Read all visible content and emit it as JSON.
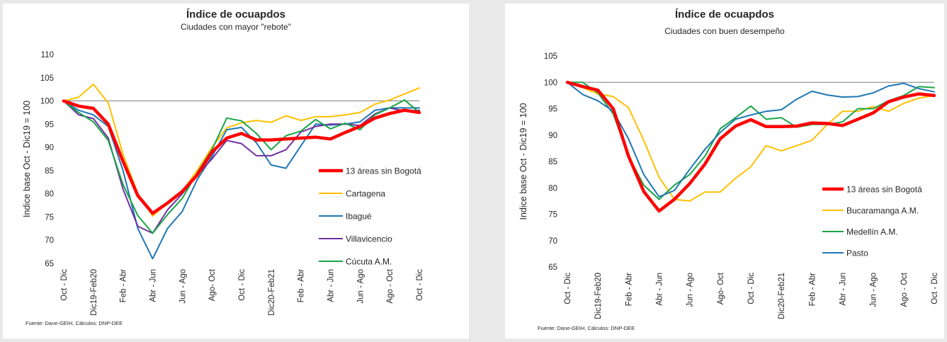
{
  "chart_data": [
    {
      "type": "line",
      "title": "Índice de ocuapdos",
      "subtitle": "Ciudades con mayor \"rebote\"",
      "ylabel": "Indice base Oct - Dic19 = 100",
      "xlabel": "",
      "ylim": [
        65,
        110
      ],
      "yticks": [
        65,
        70,
        75,
        80,
        85,
        90,
        95,
        100,
        105,
        110
      ],
      "reference_line": 100,
      "grid": false,
      "legend_position": "right",
      "x_tick_labels": [
        "Oct - Dic",
        "Dic19-Feb20",
        "Feb - Abr",
        "Abr - Jun",
        "Jun - Ago",
        "Ago- Oct",
        "Oct - Dic",
        "Dic20-Feb21",
        "Feb - Abr",
        "Abr - Jun",
        "Jun - Ago",
        "Ago - Oct",
        "Oct - Dic"
      ],
      "source": "Fuente: Dane-GEIH, Cálculos: DNP-DEE",
      "series": [
        {
          "name": "Cartagena",
          "color": "#ffc000",
          "width": 2,
          "values": [
            100,
            100.8,
            103.6,
            99.6,
            88.5,
            80,
            75.2,
            78,
            80.5,
            85,
            90,
            94.2,
            95.3,
            95.8,
            95.4,
            96.8,
            95.8,
            96.6,
            96.6,
            97,
            97.5,
            99.3,
            100.2,
            101.5,
            102.8
          ]
        },
        {
          "name": "Ibagué",
          "color": "#1f77b4",
          "width": 2,
          "values": [
            100,
            98,
            97,
            94.5,
            85,
            72.5,
            66,
            72.5,
            76.2,
            83,
            88,
            93.8,
            94.3,
            91,
            86.2,
            85.5,
            90.3,
            95,
            94.8,
            95,
            95.5,
            98,
            98.5,
            98.5,
            98.5
          ]
        },
        {
          "name": "Villavicencio",
          "color": "#7030a0",
          "width": 2,
          "values": [
            100,
            97,
            96.2,
            92,
            81,
            73,
            71.5,
            76.5,
            80,
            84,
            87.5,
            91.5,
            90.8,
            88.2,
            88.2,
            89.5,
            93.3,
            94.5,
            95,
            95,
            94.7,
            97.2,
            98.5,
            97.8,
            98
          ]
        },
        {
          "name": "Cúcuta A.M.",
          "color": "#1aa547",
          "width": 2,
          "values": [
            100,
            97.5,
            95.5,
            91.5,
            82,
            75.3,
            71.5,
            75.5,
            79,
            84.5,
            89.5,
            96.3,
            95.7,
            93,
            89.5,
            92.5,
            93.5,
            96,
            94,
            95.2,
            93.8,
            97,
            98.5,
            100.2,
            97.5
          ]
        },
        {
          "name": "13 áreas sin Bogotá",
          "color": "#ff0000",
          "width": 4.5,
          "values": [
            100,
            98.9,
            98.4,
            95,
            87,
            79.6,
            75.8,
            78,
            80.5,
            84,
            89,
            92,
            93,
            91.6,
            91.6,
            91.8,
            92,
            92.2,
            91.8,
            93.2,
            94.5,
            96.3,
            97.3,
            98,
            97.5
          ]
        }
      ],
      "legend_order": [
        "13 áreas sin Bogotá",
        "Cartagena",
        "Ibagué",
        "Villavicencio",
        "Cúcuta A.M."
      ]
    },
    {
      "type": "line",
      "title": "Índice de ocuapdos",
      "subtitle": "Ciudades con buen desempeño",
      "ylabel": "Indice base Oct - Dic19 = 100",
      "xlabel": "",
      "ylim": [
        65,
        105
      ],
      "yticks": [
        65,
        70,
        75,
        80,
        85,
        90,
        95,
        100,
        105
      ],
      "reference_line": 100,
      "grid": false,
      "legend_position": "right",
      "x_tick_labels": [
        "Oct - Dic",
        "Dic19-Feb20",
        "Feb - Abr",
        "Abr - Jun",
        "Jun - Ago",
        "Ago- Oct",
        "Oct - Dic",
        "Dic20-Feb21",
        "Feb - Abr",
        "Abr - Jun",
        "Jun - Ago",
        "Ago - Oct",
        "Oct - Dic"
      ],
      "source": "Fuente: Dane-GEIH, Cálculos: DNP-DEE",
      "series": [
        {
          "name": "Bucaramanga A.M.",
          "color": "#ffc000",
          "width": 2,
          "values": [
            100,
            99,
            97.8,
            97.3,
            95.2,
            89,
            82,
            77.8,
            77.5,
            79.2,
            79.2,
            81.8,
            84,
            88,
            87,
            88,
            89,
            92,
            94.5,
            94.5,
            95.4,
            94.5,
            96,
            97,
            97.5
          ]
        },
        {
          "name": "Medellín A.M.",
          "color": "#1aa547",
          "width": 2,
          "values": [
            100,
            100,
            98,
            94,
            86,
            80.5,
            77.8,
            80.5,
            82.5,
            86,
            91.2,
            93.3,
            95.5,
            93,
            93.3,
            91.5,
            92,
            92,
            92.5,
            95,
            95,
            96.5,
            97.5,
            99.2,
            99
          ]
        },
        {
          "name": "Pasto",
          "color": "#1f77b4",
          "width": 2,
          "values": [
            100,
            97.7,
            96.5,
            94.5,
            89.3,
            82.5,
            78.3,
            79.5,
            83.5,
            87.3,
            90.5,
            93,
            93.8,
            94.5,
            94.8,
            96.8,
            98.3,
            97.6,
            97.2,
            97.3,
            98,
            99.3,
            99.8,
            98.8,
            98.2
          ]
        },
        {
          "name": "13 áreas sin Bogotá",
          "color": "#ff0000",
          "width": 4.5,
          "values": [
            100,
            99.2,
            98.5,
            95,
            86,
            79.3,
            75.6,
            77.8,
            80.8,
            84.5,
            89.3,
            91.7,
            92.9,
            91.6,
            91.6,
            91.7,
            92.3,
            92.2,
            91.8,
            93,
            94.2,
            96.3,
            97.2,
            97.8,
            97.5
          ]
        }
      ],
      "legend_order": [
        "13 áreas sin Bogotá",
        "Bucaramanga A.M.",
        "Medellín A.M.",
        "Pasto"
      ]
    }
  ]
}
